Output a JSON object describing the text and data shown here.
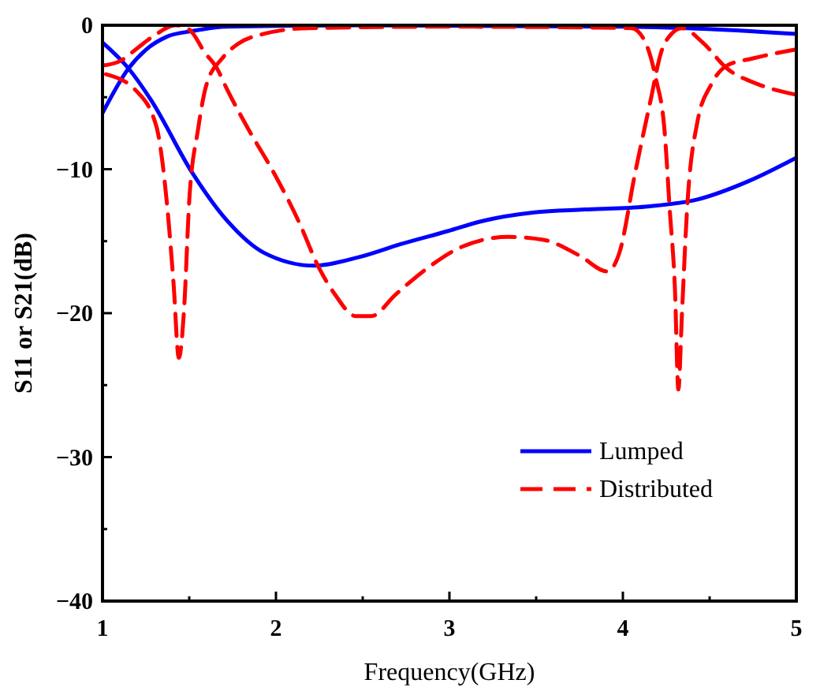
{
  "chart_data": {
    "type": "line",
    "xlabel": "Frequency(GHz)",
    "ylabel": "S11 or S21(dB)",
    "xlim": [
      1,
      5
    ],
    "ylim": [
      -40,
      0
    ],
    "xticks": [
      1,
      {
        "value": 1.5,
        "label": null
      },
      2,
      {
        "value": 2.5,
        "label": null
      },
      3,
      {
        "value": 3.5,
        "label": null
      },
      4,
      {
        "value": 4.5,
        "label": null
      },
      5
    ],
    "yticks": [
      -40,
      {
        "value": -35,
        "label": null
      },
      -30,
      {
        "value": -25,
        "label": null
      },
      -20,
      {
        "value": -15,
        "label": null
      },
      -10,
      {
        "value": -5,
        "label": null
      },
      0
    ],
    "grid": false,
    "legend": "bottom right",
    "marker": "none",
    "series": [
      {
        "name": "Lumped",
        "color": "#0000ff",
        "line_style": "solid",
        "x": [
          1,
          1.15,
          1.28,
          1.52,
          1.72,
          1.93,
          2.22,
          2.48,
          2.72,
          2.99,
          3.19,
          3.49,
          3.78,
          4.13,
          4.43,
          4.73,
          5
        ],
        "values": [
          -1.2,
          -3,
          -5.2,
          -10.3,
          -13.6,
          -15.8,
          -16.7,
          -16.1,
          -15.2,
          -14.3,
          -13.6,
          -13,
          -12.8,
          -12.6,
          -12.1,
          -10.8,
          -9.2
        ]
      },
      {
        "color": "#0000ff",
        "line_style": "solid",
        "x": [
          1,
          1.15,
          1.25,
          1.37,
          1.52,
          1.72,
          2.5,
          4,
          4.37,
          5
        ],
        "values": [
          -6.1,
          -3,
          -1.7,
          -0.8,
          -0.4,
          -0.1,
          0,
          -0.1,
          -0.2,
          -0.6
        ]
      },
      {
        "name": "Distributed",
        "color": "#ff0000",
        "line_style": "dashed",
        "x": [
          1,
          1.1,
          1.2,
          1.3,
          1.42,
          1.5,
          1.59,
          1.66,
          1.72,
          1.84,
          1.99,
          2.13,
          2.25,
          2.34,
          2.46,
          2.55,
          2.69,
          2.87,
          3.07,
          3.34,
          3.54,
          3.75,
          3.91,
          3.98,
          4.07,
          4.16,
          4.22,
          4.28,
          4.34,
          4.46,
          4.6,
          4.78,
          4.99
        ],
        "values": [
          -2.8,
          -2.5,
          -1.6,
          -0.7,
          0,
          -0.3,
          -1.9,
          -3,
          -4.5,
          -7.2,
          -10.3,
          -13.6,
          -16.9,
          -18.7,
          -20.2,
          -20.2,
          -18.7,
          -16.9,
          -15.4,
          -14.7,
          -14.9,
          -16,
          -17.1,
          -15.8,
          -10.3,
          -5.2,
          -1.9,
          -0.6,
          -0.2,
          -1.2,
          -3,
          -4.1,
          -4.8
        ]
      },
      {
        "color": "#ff0000",
        "line_style": "dashed",
        "x": [
          1.02,
          1.19,
          1.31,
          1.37,
          1.41,
          1.44,
          1.47,
          1.5,
          1.55,
          1.6,
          1.69,
          1.78,
          1.93,
          2.19,
          3,
          4.05,
          4.13,
          4.19,
          4.24,
          4.27,
          4.3,
          4.32,
          4.34,
          4.37,
          4.43,
          4.51,
          4.6,
          4.75,
          4.99
        ],
        "values": [
          -3.4,
          -4.5,
          -7,
          -12.2,
          -18,
          -23.1,
          -19.8,
          -12.2,
          -7.3,
          -4.1,
          -2.3,
          -1.3,
          -0.6,
          -0.2,
          -0.1,
          -0.2,
          -1.2,
          -3.7,
          -7.3,
          -12.8,
          -18.3,
          -25.3,
          -20.2,
          -12.8,
          -6.7,
          -4.1,
          -2.8,
          -2.3,
          -1.7
        ]
      }
    ]
  }
}
